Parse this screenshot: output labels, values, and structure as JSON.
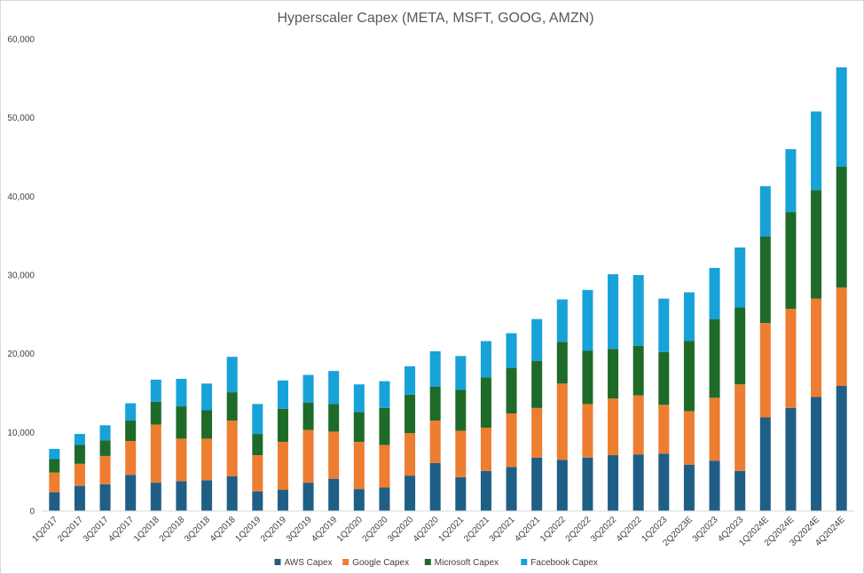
{
  "chart_data": {
    "type": "bar",
    "stacked": true,
    "title": "Hyperscaler Capex (META, MSFT, GOOG, AMZN)",
    "xlabel": "",
    "ylabel": "",
    "ylim": [
      0,
      60000
    ],
    "yticks": [
      "0",
      "10,000",
      "20,000",
      "30,000",
      "40,000",
      "50,000",
      "60,000"
    ],
    "grid": false,
    "legend_position": "bottom",
    "categories": [
      "1Q2017",
      "2Q2017",
      "3Q2017",
      "4Q2017",
      "1Q2018",
      "2Q2018",
      "3Q2018",
      "4Q2018",
      "1Q2019",
      "2Q2019",
      "3Q2019",
      "4Q2019",
      "1Q2020",
      "2Q2020",
      "3Q2020",
      "4Q2020",
      "1Q2021",
      "2Q2021",
      "3Q2021",
      "4Q2021",
      "1Q2022",
      "2Q2022",
      "3Q2022",
      "4Q2022",
      "1Q2023",
      "2Q2023E",
      "3Q2023",
      "4Q2023",
      "1Q2024E",
      "2Q2024E",
      "3Q2024E",
      "4Q2024E"
    ],
    "series": [
      {
        "name": "AWS Capex",
        "color": "#1f5f86",
        "values": [
          2400,
          3200,
          3400,
          4600,
          3600,
          3800,
          3900,
          4400,
          2500,
          2700,
          3600,
          4100,
          2800,
          3000,
          4500,
          6100,
          4300,
          5100,
          5600,
          6800,
          6500,
          6800,
          7100,
          7200,
          7300,
          5900,
          6400,
          5100,
          11900,
          13100,
          14500,
          15900
        ]
      },
      {
        "name": "Google Capex",
        "color": "#ed7d31",
        "values": [
          2500,
          2800,
          3600,
          4300,
          7400,
          5400,
          5300,
          7100,
          4600,
          6100,
          6700,
          6000,
          6000,
          5400,
          5400,
          5400,
          5900,
          5500,
          6800,
          6300,
          9700,
          6800,
          7200,
          7500,
          6200,
          6800,
          8000,
          11000,
          12000,
          12600,
          12500,
          12500
        ]
      },
      {
        "name": "Microsoft Capex",
        "color": "#1e6b29",
        "values": [
          1700,
          2400,
          2000,
          2600,
          2900,
          4100,
          3600,
          3600,
          2700,
          4200,
          3500,
          3500,
          3800,
          4700,
          4900,
          4300,
          5200,
          6400,
          5800,
          6000,
          5300,
          6800,
          6300,
          6300,
          6700,
          8900,
          10000,
          9800,
          11000,
          12300,
          13800,
          15400
        ]
      },
      {
        "name": "Facebook Capex",
        "color": "#17a2d8",
        "values": [
          1300,
          1400,
          1900,
          2200,
          2800,
          3500,
          3400,
          4500,
          3800,
          3600,
          3500,
          4200,
          3500,
          3400,
          3600,
          4500,
          4300,
          4600,
          4400,
          5300,
          5400,
          7700,
          9500,
          9000,
          6800,
          6200,
          6500,
          7600,
          6400,
          8000,
          10000,
          12600
        ]
      }
    ]
  }
}
